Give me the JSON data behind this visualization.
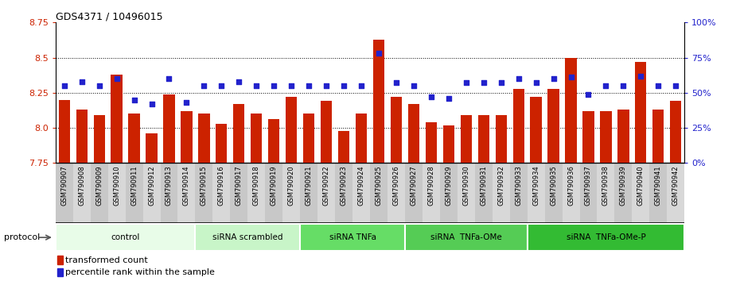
{
  "title": "GDS4371 / 10496015",
  "samples": [
    "GSM790907",
    "GSM790908",
    "GSM790909",
    "GSM790910",
    "GSM790911",
    "GSM790912",
    "GSM790913",
    "GSM790914",
    "GSM790915",
    "GSM790916",
    "GSM790917",
    "GSM790918",
    "GSM790919",
    "GSM790920",
    "GSM790921",
    "GSM790922",
    "GSM790923",
    "GSM790924",
    "GSM790925",
    "GSM790926",
    "GSM790927",
    "GSM790928",
    "GSM790929",
    "GSM790930",
    "GSM790931",
    "GSM790932",
    "GSM790933",
    "GSM790934",
    "GSM790935",
    "GSM790936",
    "GSM790937",
    "GSM790938",
    "GSM790939",
    "GSM790940",
    "GSM790941",
    "GSM790942"
  ],
  "bar_values": [
    8.2,
    8.13,
    8.09,
    8.38,
    8.1,
    7.96,
    8.24,
    8.12,
    8.1,
    8.03,
    8.17,
    8.1,
    8.06,
    8.22,
    8.1,
    8.19,
    7.98,
    8.1,
    8.63,
    8.22,
    8.17,
    8.04,
    8.02,
    8.09,
    8.09,
    8.09,
    8.28,
    8.22,
    8.28,
    8.5,
    8.12,
    8.12,
    8.13,
    8.47,
    8.13,
    8.19
  ],
  "percentile_pct": [
    55,
    58,
    55,
    60,
    45,
    42,
    60,
    43,
    55,
    55,
    58,
    55,
    55,
    55,
    55,
    55,
    55,
    55,
    78,
    57,
    55,
    47,
    46,
    57,
    57,
    57,
    60,
    57,
    60,
    61,
    49,
    55,
    55,
    62,
    55,
    55
  ],
  "ylim_left": [
    7.75,
    8.75
  ],
  "ylim_right": [
    0,
    100
  ],
  "yticks_left": [
    7.75,
    8.0,
    8.25,
    8.5,
    8.75
  ],
  "yticks_right": [
    0,
    25,
    50,
    75,
    100
  ],
  "bar_color": "#cc2200",
  "dot_color": "#2222cc",
  "grid_levels": [
    8.0,
    8.25,
    8.5
  ],
  "groups": [
    {
      "label": "control",
      "start": 0,
      "end": 8,
      "color": "#e8fce8"
    },
    {
      "label": "siRNA scrambled",
      "start": 8,
      "end": 14,
      "color": "#c8f5c8"
    },
    {
      "label": "siRNA TNFa",
      "start": 14,
      "end": 20,
      "color": "#66dd66"
    },
    {
      "label": "siRNA  TNFa-OMe",
      "start": 20,
      "end": 27,
      "color": "#55cc55"
    },
    {
      "label": "siRNA  TNFa-OMe-P",
      "start": 27,
      "end": 36,
      "color": "#33bb33"
    }
  ],
  "legend_bar_label": "transformed count",
  "legend_dot_label": "percentile rank within the sample",
  "protocol_label": "protocol"
}
